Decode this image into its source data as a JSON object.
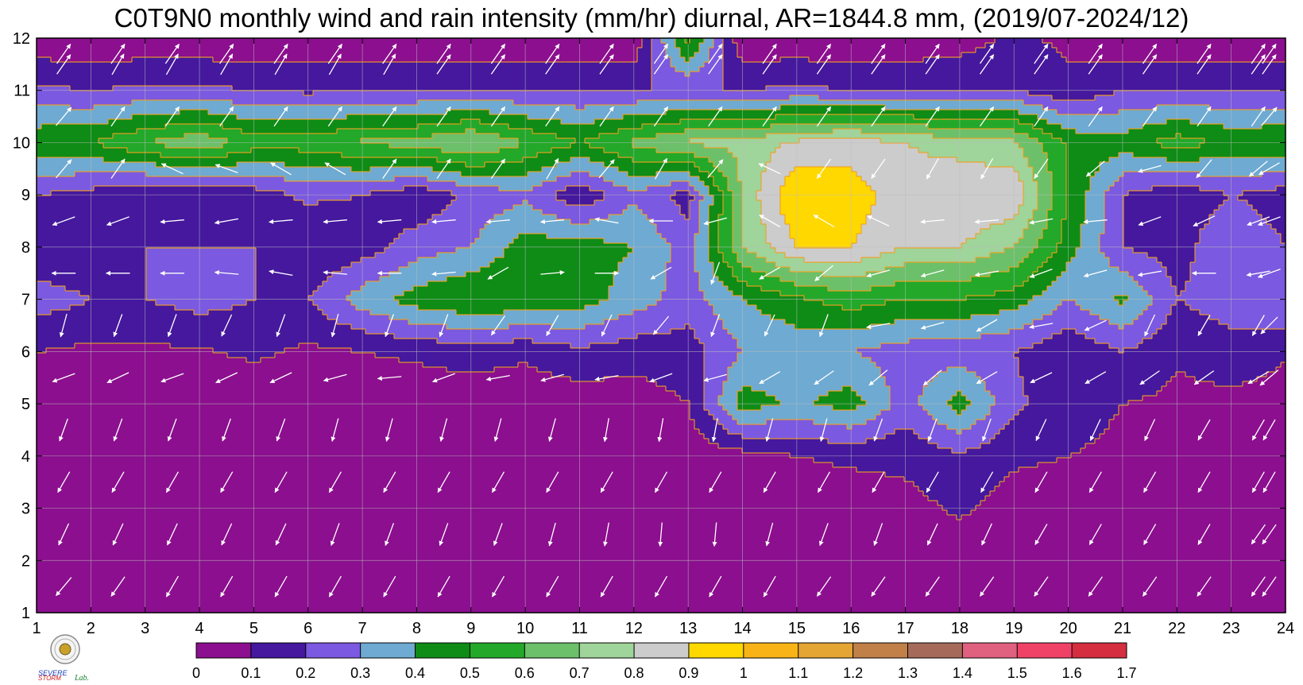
{
  "chart_data": {
    "type": "heatmap",
    "title": "C0T9N0 monthly wind and rain intensity (mm/hr) diurnal, AR=1844.8 mm, (2019/07-2024/12)",
    "xlabel": "",
    "ylabel": "",
    "x_ticks": [
      "1",
      "2",
      "3",
      "4",
      "5",
      "6",
      "7",
      "8",
      "9",
      "10",
      "11",
      "12",
      "13",
      "14",
      "15",
      "16",
      "17",
      "18",
      "19",
      "20",
      "21",
      "22",
      "23",
      "24"
    ],
    "y_ticks": [
      "1",
      "2",
      "3",
      "4",
      "5",
      "6",
      "7",
      "8",
      "9",
      "10",
      "11",
      "12"
    ],
    "xlim": [
      1,
      24
    ],
    "ylim": [
      1,
      12
    ],
    "grid": true,
    "colorbar": {
      "levels": [
        0,
        0.1,
        0.2,
        0.3,
        0.4,
        0.5,
        0.6,
        0.7,
        0.8,
        0.9,
        1,
        1.1,
        1.2,
        1.3,
        1.4,
        1.5,
        1.6,
        1.7
      ],
      "labels": [
        "0",
        "0.1",
        "0.2",
        "0.3",
        "0.4",
        "0.5",
        "0.6",
        "0.7",
        "0.8",
        "0.9",
        "1",
        "1.1",
        "1.2",
        "1.3",
        "1.4",
        "1.5",
        "1.6",
        "1.7"
      ],
      "colors": [
        "#8b0f8e",
        "#45189e",
        "#7b59e0",
        "#6eaad2",
        "#0e8c16",
        "#23a82a",
        "#6cc06a",
        "#9fd49a",
        "#cccccc",
        "#ffd800",
        "#f8b416",
        "#e4a535",
        "#c08048",
        "#a56a5a",
        "#e06080",
        "#ef4266",
        "#d42e40"
      ]
    },
    "rain_grid": [
      [
        0.02,
        0.02,
        0.02,
        0.02,
        0.02,
        0.02,
        0.02,
        0.02,
        0.02,
        0.02,
        0.02,
        0.02,
        0.02,
        0.02,
        0.02,
        0.02,
        0.02,
        0.02,
        0.02,
        0.02,
        0.02,
        0.02,
        0.02,
        0.02
      ],
      [
        0.02,
        0.02,
        0.02,
        0.02,
        0.02,
        0.02,
        0.02,
        0.02,
        0.02,
        0.02,
        0.02,
        0.02,
        0.02,
        0.02,
        0.02,
        0.02,
        0.02,
        0.02,
        0.02,
        0.02,
        0.02,
        0.02,
        0.02,
        0.02
      ],
      [
        0.02,
        0.02,
        0.02,
        0.02,
        0.02,
        0.02,
        0.02,
        0.02,
        0.02,
        0.02,
        0.02,
        0.02,
        0.02,
        0.02,
        0.02,
        0.04,
        0.06,
        0.12,
        0.05,
        0.04,
        0.03,
        0.02,
        0.02,
        0.02
      ],
      [
        0.03,
        0.02,
        0.02,
        0.02,
        0.02,
        0.02,
        0.02,
        0.02,
        0.02,
        0.02,
        0.02,
        0.02,
        0.04,
        0.06,
        0.1,
        0.12,
        0.13,
        0.18,
        0.12,
        0.1,
        0.08,
        0.05,
        0.06,
        0.03
      ],
      [
        0.08,
        0.05,
        0.03,
        0.03,
        0.02,
        0.03,
        0.03,
        0.03,
        0.03,
        0.03,
        0.04,
        0.05,
        0.1,
        0.45,
        0.38,
        0.45,
        0.25,
        0.45,
        0.22,
        0.14,
        0.1,
        0.08,
        0.07,
        0.06
      ],
      [
        0.1,
        0.08,
        0.08,
        0.09,
        0.12,
        0.08,
        0.1,
        0.12,
        0.15,
        0.12,
        0.18,
        0.14,
        0.15,
        0.3,
        0.33,
        0.3,
        0.25,
        0.24,
        0.2,
        0.12,
        0.2,
        0.11,
        0.16,
        0.11
      ],
      [
        0.25,
        0.2,
        0.2,
        0.24,
        0.2,
        0.2,
        0.35,
        0.45,
        0.5,
        0.48,
        0.45,
        0.35,
        0.25,
        0.4,
        0.48,
        0.55,
        0.5,
        0.5,
        0.45,
        0.3,
        0.42,
        0.2,
        0.25,
        0.3
      ],
      [
        0.12,
        0.1,
        0.2,
        0.2,
        0.2,
        0.1,
        0.15,
        0.25,
        0.3,
        0.45,
        0.45,
        0.4,
        0.25,
        0.7,
        0.9,
        0.9,
        0.8,
        0.8,
        0.7,
        0.45,
        0.2,
        0.15,
        0.3,
        0.2
      ],
      [
        0.2,
        0.16,
        0.1,
        0.1,
        0.15,
        0.22,
        0.2,
        0.12,
        0.22,
        0.28,
        0.12,
        0.28,
        0.15,
        0.72,
        1.0,
        0.95,
        0.85,
        0.9,
        0.88,
        0.5,
        0.2,
        0.12,
        0.2,
        0.15
      ],
      [
        0.48,
        0.5,
        0.6,
        0.68,
        0.55,
        0.55,
        0.62,
        0.63,
        0.72,
        0.6,
        0.5,
        0.62,
        0.72,
        0.73,
        0.82,
        0.85,
        0.8,
        0.75,
        0.72,
        0.48,
        0.45,
        0.55,
        0.48,
        0.5
      ],
      [
        0.22,
        0.2,
        0.22,
        0.22,
        0.2,
        0.18,
        0.2,
        0.2,
        0.2,
        0.2,
        0.2,
        0.2,
        0.2,
        0.2,
        0.22,
        0.2,
        0.2,
        0.2,
        0.2,
        0.12,
        0.2,
        0.2,
        0.2,
        0.2
      ],
      [
        0.02,
        0.02,
        0.02,
        0.02,
        0.02,
        0.02,
        0.02,
        0.02,
        0.02,
        0.02,
        0.02,
        0.02,
        0.55,
        0.02,
        0.02,
        0.02,
        0.02,
        0.05,
        0.12,
        0.08,
        0.02,
        0.02,
        0.02,
        0.02
      ]
    ],
    "wind_dir_deg_to": [
      [
        220,
        215,
        210,
        210,
        210,
        210,
        210,
        210,
        210,
        210,
        210,
        210,
        210,
        210,
        215,
        215,
        215,
        215,
        215,
        215,
        215,
        215,
        215,
        215
      ],
      [
        205,
        205,
        205,
        205,
        205,
        200,
        200,
        200,
        200,
        195,
        190,
        185,
        185,
        195,
        200,
        200,
        205,
        205,
        210,
        210,
        210,
        210,
        215,
        215
      ],
      [
        210,
        210,
        210,
        210,
        210,
        210,
        210,
        210,
        210,
        210,
        210,
        210,
        210,
        210,
        210,
        210,
        210,
        210,
        210,
        210,
        210,
        210,
        210,
        210
      ],
      [
        200,
        200,
        200,
        200,
        200,
        195,
        195,
        195,
        195,
        195,
        190,
        190,
        190,
        195,
        195,
        200,
        200,
        200,
        205,
        205,
        205,
        210,
        210,
        210
      ],
      [
        250,
        245,
        250,
        245,
        245,
        255,
        265,
        250,
        260,
        255,
        260,
        250,
        255,
        240,
        235,
        230,
        230,
        240,
        245,
        240,
        235,
        235,
        240,
        230
      ],
      [
        195,
        200,
        200,
        205,
        200,
        195,
        200,
        200,
        215,
        210,
        205,
        220,
        200,
        205,
        200,
        260,
        255,
        240,
        260,
        245,
        205,
        210,
        210,
        225
      ],
      [
        270,
        270,
        270,
        275,
        280,
        275,
        270,
        265,
        240,
        85,
        90,
        240,
        200,
        240,
        230,
        255,
        255,
        260,
        250,
        255,
        260,
        270,
        260,
        250
      ],
      [
        250,
        250,
        265,
        260,
        265,
        265,
        265,
        265,
        265,
        265,
        280,
        270,
        255,
        300,
        300,
        295,
        265,
        265,
        260,
        265,
        250,
        245,
        250,
        250
      ],
      [
        40,
        35,
        295,
        290,
        300,
        300,
        35,
        35,
        35,
        30,
        40,
        30,
        40,
        295,
        215,
        215,
        210,
        210,
        215,
        230,
        255,
        220,
        230,
        240
      ],
      [
        40,
        35,
        35,
        35,
        35,
        35,
        35,
        35,
        35,
        35,
        35,
        35,
        35,
        35,
        35,
        35,
        35,
        35,
        35,
        35,
        35,
        35,
        35,
        40
      ],
      [
        35,
        30,
        30,
        30,
        30,
        30,
        30,
        35,
        35,
        35,
        35,
        35,
        35,
        35,
        35,
        35,
        35,
        35,
        35,
        35,
        35,
        35,
        35,
        35
      ],
      [
        35,
        35,
        35,
        35,
        35,
        35,
        35,
        35,
        35,
        35,
        35,
        35,
        35,
        35,
        35,
        35,
        35,
        35,
        35,
        35,
        35,
        35,
        35,
        35
      ]
    ]
  },
  "logo": {
    "text_a": "SEVERE",
    "text_b": "STORM",
    "text_c": "Lab."
  }
}
